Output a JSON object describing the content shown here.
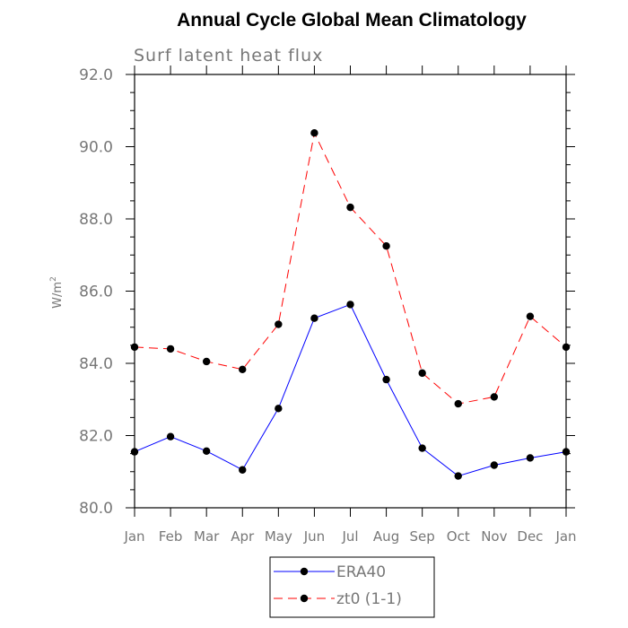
{
  "chart_data": {
    "type": "line",
    "title": "Annual Cycle Global Mean Climatology",
    "subtitle": "Surf latent heat flux",
    "ylabel_base": "W/m",
    "ylabel_sup": "2",
    "xlabel": "",
    "ylim": [
      80.0,
      92.0
    ],
    "yticks": [
      80.0,
      82.0,
      84.0,
      86.0,
      88.0,
      90.0,
      92.0
    ],
    "ytick_labels": [
      "80.0",
      "82.0",
      "84.0",
      "86.0",
      "88.0",
      "90.0",
      "92.0"
    ],
    "categories": [
      "Jan",
      "Feb",
      "Mar",
      "Apr",
      "May",
      "Jun",
      "Jul",
      "Aug",
      "Sep",
      "Oct",
      "Nov",
      "Dec",
      "Jan"
    ],
    "grid": false,
    "legend_position": "bottom-center",
    "series": [
      {
        "name": "ERA40",
        "color": "#0000ff",
        "line_style": "solid",
        "marker": "filled-circle",
        "values": [
          81.55,
          81.97,
          81.57,
          81.05,
          82.75,
          85.25,
          85.63,
          83.55,
          81.65,
          80.88,
          81.18,
          81.38,
          81.55
        ]
      },
      {
        "name": "zt0 (1-1)",
        "color": "#ff0000",
        "line_style": "dashed",
        "marker": "filled-circle",
        "values": [
          84.45,
          84.4,
          84.05,
          83.83,
          85.08,
          90.38,
          88.32,
          87.25,
          83.73,
          82.88,
          83.07,
          85.3,
          84.45
        ]
      }
    ]
  }
}
